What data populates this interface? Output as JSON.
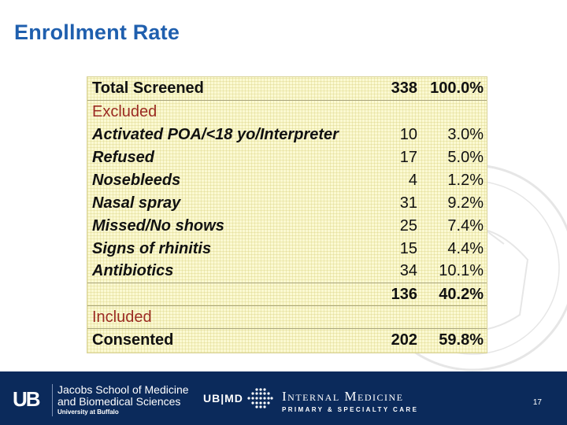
{
  "slide": {
    "title": "Enrollment Rate",
    "page_number": "17"
  },
  "table": {
    "rows": [
      {
        "label": "Total Screened",
        "n": "338",
        "pct": "100.0%"
      },
      {
        "label": "Excluded",
        "n": "",
        "pct": ""
      },
      {
        "label": "Activated POA/<18 yo/Interpreter",
        "n": "10",
        "pct": "3.0%"
      },
      {
        "label": "Refused",
        "n": "17",
        "pct": "5.0%"
      },
      {
        "label": "Nosebleeds",
        "n": "4",
        "pct": "1.2%"
      },
      {
        "label": "Nasal spray",
        "n": "31",
        "pct": "9.2%"
      },
      {
        "label": "Missed/No shows",
        "n": "25",
        "pct": "7.4%"
      },
      {
        "label": "Signs of rhinitis",
        "n": "15",
        "pct": "4.4%"
      },
      {
        "label": "Antibiotics",
        "n": "34",
        "pct": "10.1%"
      },
      {
        "label": "",
        "n": "136",
        "pct": "40.2%"
      },
      {
        "label": "Included",
        "n": "",
        "pct": ""
      },
      {
        "label": "Consented",
        "n": "202",
        "pct": "59.8%"
      }
    ]
  },
  "footer": {
    "ub_logo": "UB",
    "school_line1": "Jacobs School of Medicine",
    "school_line2": "and Biomedical Sciences",
    "school_line3": "University at Buffalo",
    "ubmd": "UB|MD",
    "dept_line1": "Internal Medicine",
    "dept_line2": "PRIMARY & SPECIALTY CARE"
  },
  "colors": {
    "title": "#1f5fae",
    "section_label": "#9b2b23",
    "table_bg": "#fbf9d2",
    "footer_bg": "#0b2a5b"
  }
}
